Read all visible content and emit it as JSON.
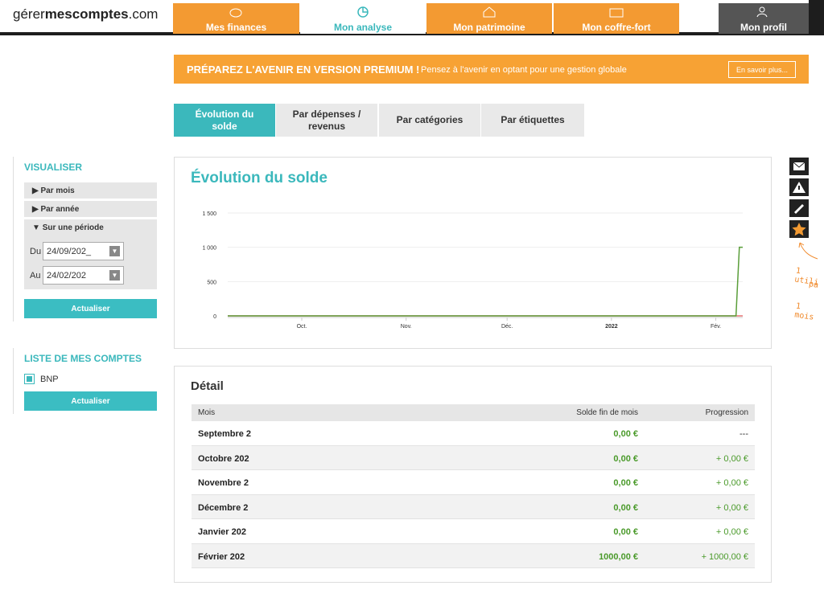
{
  "header": {
    "logo_light": "gérer",
    "logo_bold": "mescomptes",
    "logo_tail": ".com",
    "tabs": [
      "Mes finances",
      "Mon analyse",
      "Mon patrimoine",
      "Mon coffre-fort"
    ],
    "profile": "Mon profil"
  },
  "banner": {
    "title": "PRÉPAREZ L'AVENIR EN VERSION PREMIUM !",
    "text": "Pensez à l'avenir en optant pour une gestion globale",
    "button": "En savoir plus..."
  },
  "subtabs": [
    "Évolution du solde",
    "Par dépenses / revenus",
    "Par catégories",
    "Par étiquettes"
  ],
  "sidebar": {
    "visualiser": "VISUALISER",
    "options": [
      "Par mois",
      "Par année",
      "Sur une période"
    ],
    "from_label": "Du",
    "from_value": "24/09/202_",
    "to_label": "Au",
    "to_value": "24/02/202",
    "button": "Actualiser",
    "accounts_title": "LISTE DE MES COMPTES",
    "accounts": [
      "BNP"
    ],
    "accounts_button": "Actualiser"
  },
  "chart_data": {
    "type": "line",
    "title": "Évolution du solde",
    "xlim": [
      0,
      153
    ],
    "xticks": [
      {
        "value": 22,
        "label": "Oct."
      },
      {
        "value": 53,
        "label": "Nov."
      },
      {
        "value": 83,
        "label": "Déc."
      },
      {
        "value": 114,
        "label": "2022"
      },
      {
        "value": 145,
        "label": "Fév."
      }
    ],
    "ylim": [
      0,
      1500
    ],
    "yticks": [
      0,
      500,
      {
        "value": 1000,
        "label": "1 000"
      },
      {
        "value": 1500,
        "label": "1 500"
      }
    ],
    "grid": true,
    "series": [
      {
        "color": "#e57373",
        "x": [
          0,
          153
        ],
        "values": [
          0,
          0
        ]
      },
      {
        "color": "#5a9e3a",
        "x": [
          0,
          151,
          152,
          153
        ],
        "values": [
          0,
          0,
          1000,
          1000
        ]
      }
    ]
  },
  "detail": {
    "title": "Détail",
    "columns": [
      "Mois",
      "Solde fin de mois",
      "Progression"
    ],
    "rows": [
      [
        "Septembre 2",
        "0,00 €",
        "---"
      ],
      [
        "Octobre 202",
        "0,00 €",
        "+ 0,00 €"
      ],
      [
        "Novembre 2",
        "0,00 €",
        "+ 0,00 €"
      ],
      [
        "Décembre 2",
        "0,00 €",
        "+ 0,00 €"
      ],
      [
        "Janvier 202",
        "0,00 €",
        "+ 0,00 €"
      ],
      [
        "Février 202",
        "1000,00 €",
        "+ 1000,00 €"
      ]
    ]
  },
  "side_note": [
    "1 utili",
    "pa",
    "1 mois"
  ]
}
